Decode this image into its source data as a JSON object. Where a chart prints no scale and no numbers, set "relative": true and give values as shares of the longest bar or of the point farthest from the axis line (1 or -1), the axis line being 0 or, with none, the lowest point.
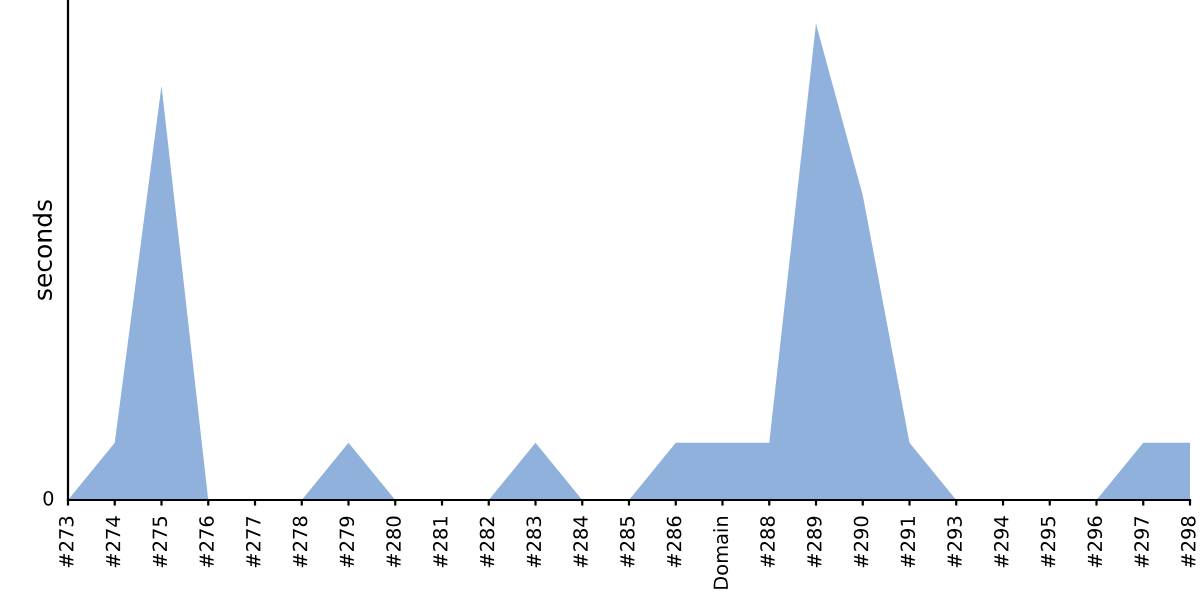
{
  "chart_data": {
    "type": "area",
    "ylabel": "seconds",
    "relative": true,
    "annotations": [
      "0"
    ],
    "grid": false,
    "legend": false,
    "categories": [
      "#273",
      "#274",
      "#275",
      "#276",
      "#277",
      "#278",
      "#279",
      "#280",
      "#281",
      "#282",
      "#283",
      "#284",
      "#285",
      "#286",
      "Domain",
      "#288",
      "#289",
      "#290",
      "#291",
      "#293",
      "#294",
      "#295",
      "#296",
      "#297",
      "#298"
    ],
    "series": [
      {
        "color": "#8fb1dc",
        "values": [
          0,
          0.12,
          0.87,
          0,
          0,
          0,
          0.12,
          0,
          0,
          0,
          0.12,
          0,
          0,
          0.12,
          0.12,
          0.12,
          1,
          0.64,
          0.12,
          0,
          0,
          0,
          0,
          0.12,
          0.12
        ]
      }
    ]
  }
}
